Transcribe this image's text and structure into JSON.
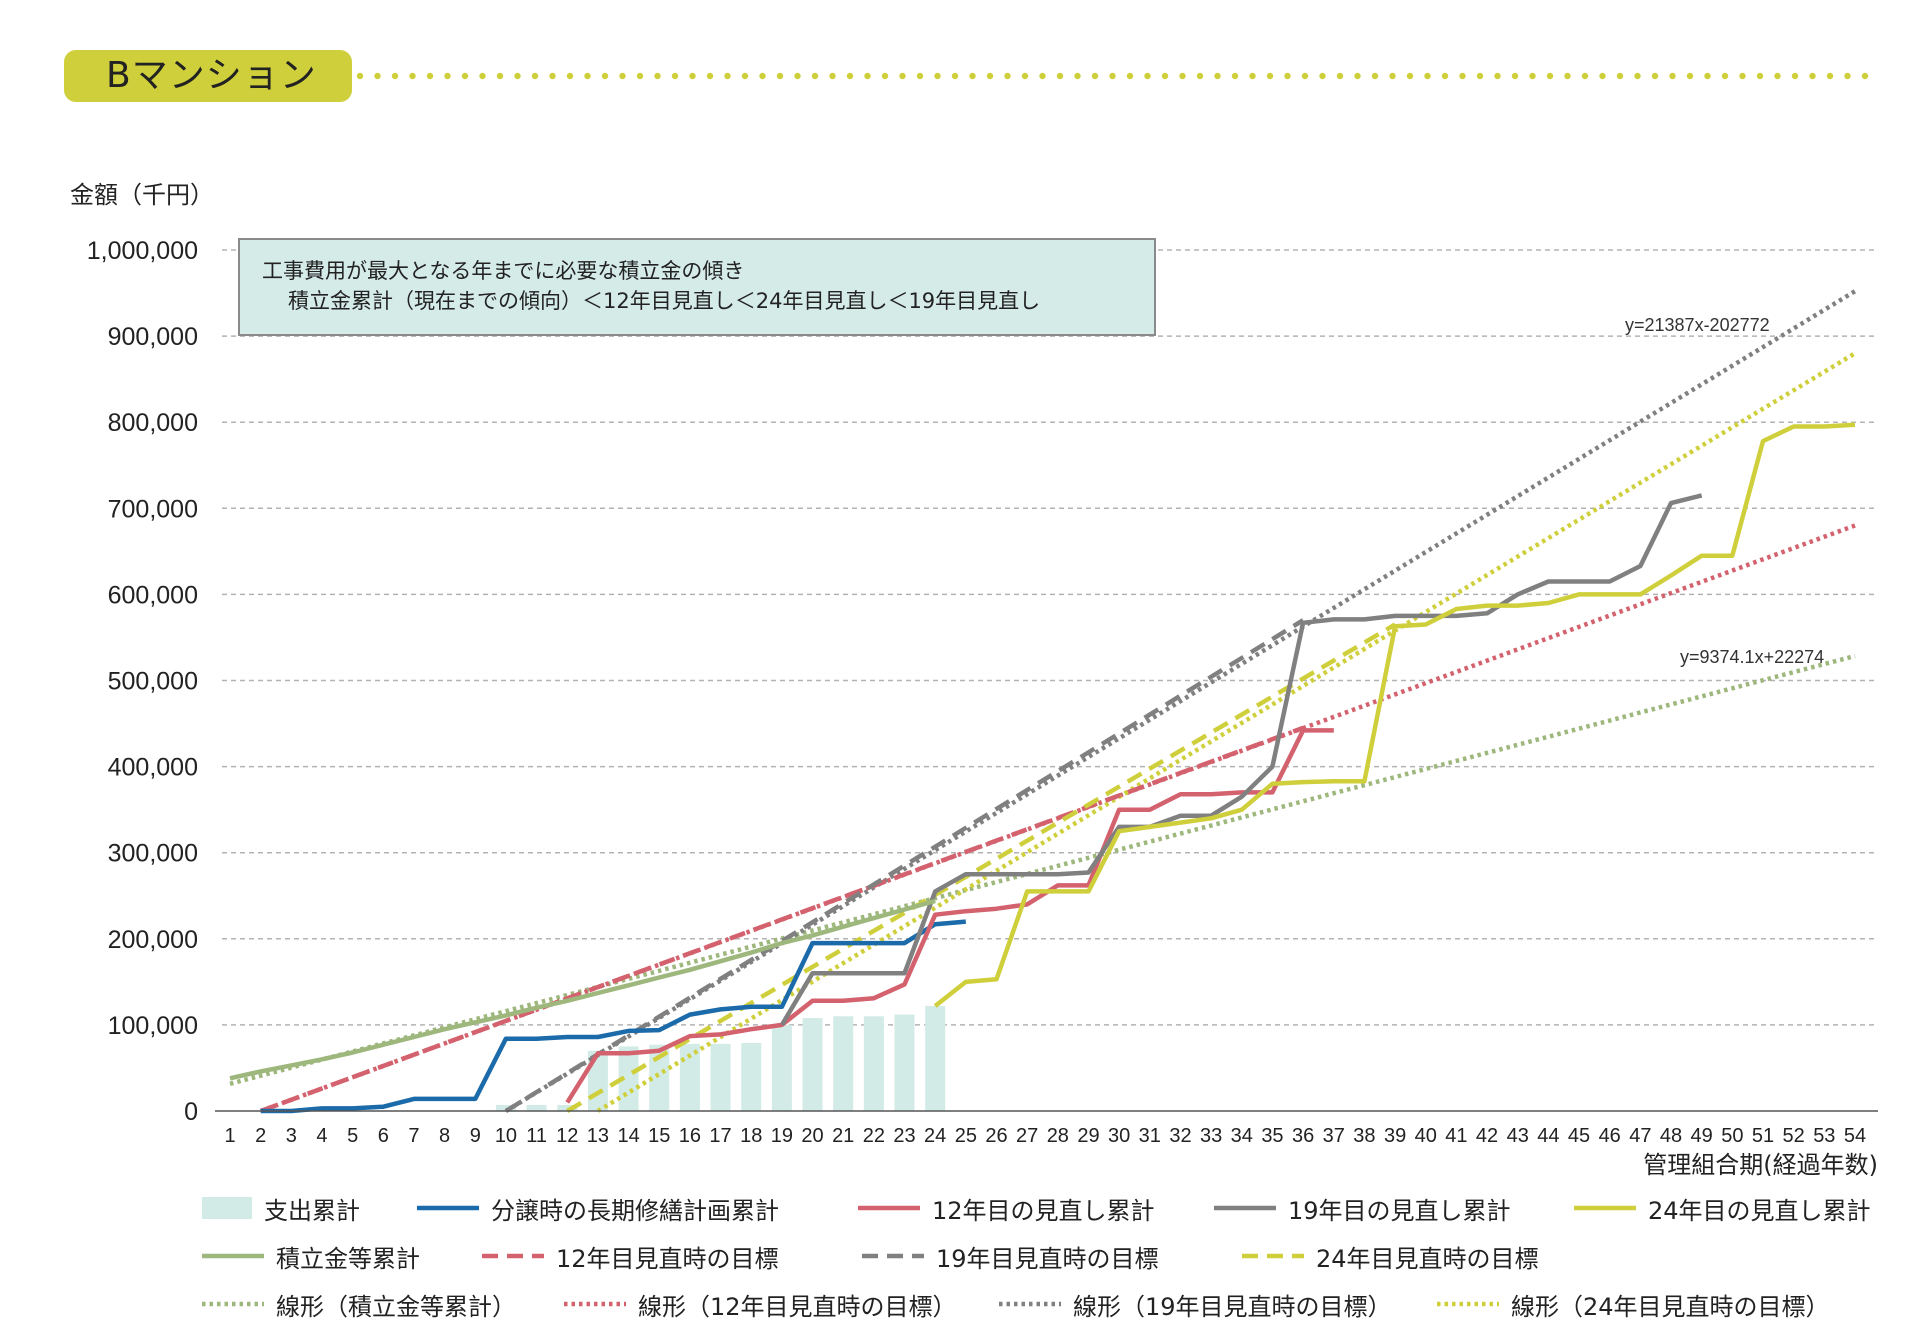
{
  "title": "Bマンション",
  "y_axis_label": "金額（千円）",
  "x_axis_label": "管理組合期(経過年数)",
  "note": {
    "line1": "工事費用が最大となる年までに必要な積立金の傾き",
    "line2": "積立金累計（現在までの傾向）＜12年目見直し＜24年目見直し＜19年目見直し"
  },
  "annotations": {
    "trend19_eq": "y=21387x-202772",
    "trend_fund_eq": "y=9374.1x+22274"
  },
  "colors": {
    "title_tab": "#cfcf3c",
    "expense_bar": "#d3ebe6",
    "blue": "#1b6aa9",
    "red": "#d4626e",
    "gray": "#808080",
    "yellow": "#cfcf3c",
    "green": "#9db77c"
  },
  "legend": [
    {
      "label": "支出累計",
      "style": "bar",
      "color": "#d3ebe6"
    },
    {
      "label": "分譲時の長期修繕計画累計",
      "style": "solid",
      "color": "#1b6aa9"
    },
    {
      "label": "12年目の見直し累計",
      "style": "solid",
      "color": "#d4626e"
    },
    {
      "label": "19年目の見直し累計",
      "style": "solid",
      "color": "#808080"
    },
    {
      "label": "24年目の見直し累計",
      "style": "solid",
      "color": "#cfcf3c"
    },
    {
      "label": "積立金等累計",
      "style": "solid",
      "color": "#9db77c"
    },
    {
      "label": "12年目見直時の目標",
      "style": "dashed",
      "color": "#d4626e"
    },
    {
      "label": "19年目見直時の目標",
      "style": "dashed",
      "color": "#808080"
    },
    {
      "label": "24年目見直時の目標",
      "style": "dashed",
      "color": "#cfcf3c"
    },
    {
      "label": "線形（積立金等累計）",
      "style": "dotted",
      "color": "#9db77c"
    },
    {
      "label": "線形（12年目見直時の目標）",
      "style": "dotted",
      "color": "#d4626e"
    },
    {
      "label": "線形（19年目見直時の目標）",
      "style": "dotted",
      "color": "#808080"
    },
    {
      "label": "線形（24年目見直時の目標）",
      "style": "dotted",
      "color": "#cfcf3c"
    }
  ],
  "chart_data": {
    "type": "line",
    "xlabel": "管理組合期(経過年数)",
    "ylabel": "金額（千円）",
    "xlim": [
      1,
      54
    ],
    "ylim": [
      0,
      1000000
    ],
    "x_ticks": [
      1,
      2,
      3,
      4,
      5,
      6,
      7,
      8,
      9,
      10,
      11,
      12,
      13,
      14,
      15,
      16,
      17,
      18,
      19,
      20,
      21,
      22,
      23,
      24,
      25,
      26,
      27,
      28,
      29,
      30,
      31,
      32,
      33,
      34,
      35,
      36,
      37,
      38,
      39,
      40,
      41,
      42,
      43,
      44,
      45,
      46,
      47,
      48,
      49,
      50,
      51,
      52,
      53,
      54
    ],
    "y_ticks": [
      0,
      100000,
      200000,
      300000,
      400000,
      500000,
      600000,
      700000,
      800000,
      900000,
      1000000
    ],
    "y_tick_labels": [
      "0",
      "100,000",
      "200,000",
      "300,000",
      "400,000",
      "500,000",
      "600,000",
      "700,000",
      "800,000",
      "900,000",
      "1,000,000"
    ],
    "grid": true,
    "series": [
      {
        "name": "支出累計",
        "kind": "bar",
        "color": "#d3ebe6",
        "x": [
          10,
          11,
          12,
          13,
          14,
          15,
          16,
          17,
          18,
          19,
          20,
          21,
          22,
          23,
          24
        ],
        "values": [
          7000,
          7000,
          7000,
          70000,
          75000,
          77000,
          78000,
          78000,
          79000,
          100000,
          108000,
          110000,
          110000,
          112000,
          122000
        ]
      },
      {
        "name": "分譲時の長期修繕計画累計",
        "kind": "line",
        "dash": "solid",
        "color": "#1b6aa9",
        "x": [
          2,
          3,
          4,
          5,
          6,
          7,
          8,
          9,
          10,
          11,
          12,
          13,
          14,
          15,
          16,
          17,
          18,
          19,
          20,
          21,
          22,
          23,
          24,
          25
        ],
        "values": [
          0,
          0,
          3000,
          3000,
          5000,
          14000,
          14000,
          14000,
          84000,
          84000,
          86000,
          86000,
          93000,
          94000,
          112000,
          118000,
          121000,
          121000,
          195000,
          195000,
          195000,
          195000,
          217000,
          220000
        ]
      },
      {
        "name": "12年目の見直し累計",
        "kind": "line",
        "dash": "solid",
        "color": "#d4626e",
        "x": [
          12,
          13,
          14,
          15,
          16,
          17,
          18,
          19,
          20,
          21,
          22,
          23,
          24,
          25,
          26,
          27,
          28,
          29,
          30,
          31,
          32,
          33,
          34,
          35,
          36,
          37
        ],
        "values": [
          10000,
          67000,
          67000,
          70000,
          87000,
          89000,
          95000,
          100000,
          128000,
          128000,
          131000,
          147000,
          228000,
          232000,
          235000,
          240000,
          262000,
          262000,
          350000,
          350000,
          368000,
          368000,
          370000,
          370000,
          442000,
          442000
        ]
      },
      {
        "name": "19年目の見直し累計",
        "kind": "line",
        "dash": "solid",
        "color": "#808080",
        "x": [
          19,
          20,
          21,
          22,
          23,
          24,
          25,
          26,
          27,
          28,
          29,
          30,
          31,
          32,
          33,
          34,
          35,
          36,
          37,
          38,
          39,
          40,
          41,
          42,
          43,
          44,
          45,
          46,
          47,
          48,
          49
        ],
        "values": [
          100000,
          160000,
          160000,
          160000,
          160000,
          255000,
          275000,
          275000,
          275000,
          275000,
          277000,
          330000,
          330000,
          343000,
          343000,
          365000,
          400000,
          567000,
          571000,
          571000,
          575000,
          575000,
          575000,
          578000,
          600000,
          615000,
          615000,
          615000,
          633000,
          706000,
          715000
        ]
      },
      {
        "name": "24年目の見直し累計",
        "kind": "line",
        "dash": "solid",
        "color": "#cfcf3c",
        "x": [
          24,
          25,
          26,
          27,
          28,
          29,
          30,
          31,
          32,
          33,
          34,
          35,
          36,
          37,
          38,
          39,
          40,
          41,
          42,
          43,
          44,
          45,
          46,
          47,
          48,
          49,
          50,
          51,
          52,
          53,
          54
        ],
        "values": [
          122000,
          150000,
          153000,
          255000,
          255000,
          255000,
          325000,
          330000,
          335000,
          340000,
          350000,
          380000,
          382000,
          383000,
          383000,
          563000,
          565000,
          583000,
          587000,
          587000,
          590000,
          600000,
          600000,
          600000,
          622000,
          645000,
          645000,
          778000,
          795000,
          795000,
          797000
        ]
      },
      {
        "name": "積立金等累計",
        "kind": "line",
        "dash": "solid",
        "color": "#9db77c",
        "x": [
          1,
          2,
          3,
          4,
          5,
          6,
          7,
          8,
          9,
          10,
          11,
          12,
          13,
          14,
          15,
          16,
          17,
          18,
          19,
          20,
          21,
          22,
          23,
          24
        ],
        "values": [
          38000,
          46000,
          53000,
          60000,
          68000,
          77000,
          86000,
          95000,
          103000,
          111000,
          120000,
          128000,
          137000,
          146000,
          155000,
          164000,
          174000,
          184000,
          195000,
          204000,
          214000,
          224000,
          234000,
          244000
        ]
      },
      {
        "name": "12年目見直時の目標",
        "kind": "line",
        "dash": "dashed",
        "color": "#d4626e",
        "x": [
          2,
          36
        ],
        "values": [
          0,
          445000
        ]
      },
      {
        "name": "19年目見直時の目標",
        "kind": "line",
        "dash": "dashed",
        "color": "#808080",
        "x": [
          10,
          36
        ],
        "values": [
          0,
          570000
        ]
      },
      {
        "name": "24年目見直時の目標",
        "kind": "line",
        "dash": "dashed",
        "color": "#cfcf3c",
        "x": [
          12,
          39
        ],
        "values": [
          0,
          565000
        ]
      },
      {
        "name": "線形（積立金等累計）",
        "kind": "line",
        "dash": "dotted",
        "color": "#9db77c",
        "x": [
          1,
          54
        ],
        "values": [
          31648,
          528500
        ]
      },
      {
        "name": "線形（12年目見直時の目標）",
        "kind": "line",
        "dash": "dotted",
        "color": "#d4626e",
        "x": [
          2,
          54
        ],
        "values": [
          0,
          680000
        ]
      },
      {
        "name": "線形（19年目見直時の目標）",
        "kind": "line",
        "dash": "dotted",
        "color": "#808080",
        "x": [
          10,
          54
        ],
        "values": [
          0,
          952126
        ]
      },
      {
        "name": "線形（24年目見直時の目標）",
        "kind": "line",
        "dash": "dotted",
        "color": "#cfcf3c",
        "x": [
          13,
          54
        ],
        "values": [
          0,
          880000
        ]
      }
    ]
  }
}
